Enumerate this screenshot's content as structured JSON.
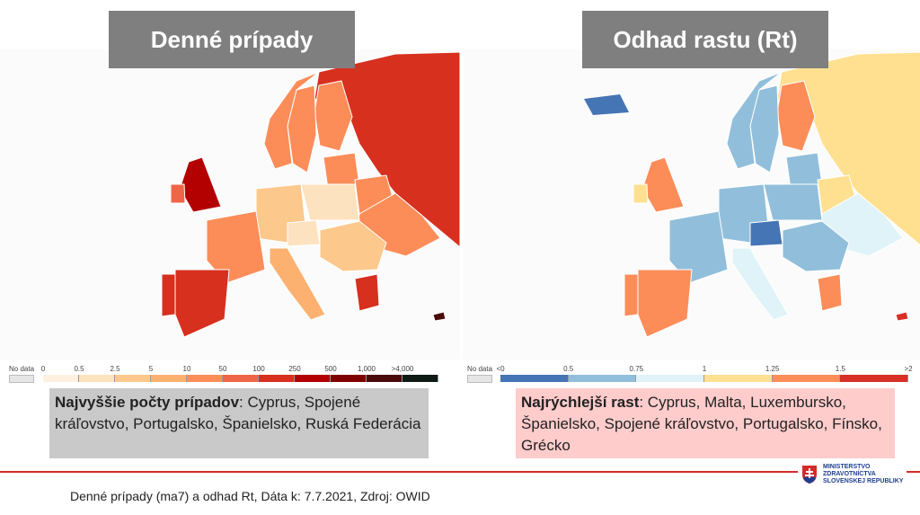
{
  "left": {
    "title": "Denné prípady",
    "legend": {
      "no_data": "No data",
      "ticks": [
        "0",
        "0.5",
        "2.5",
        "5",
        "10",
        "50",
        "100",
        "250",
        "500",
        "1,000",
        ">4,000"
      ],
      "colors": [
        "#fff0e0",
        "#fde2c0",
        "#fdc88c",
        "#fdb170",
        "#fc8d59",
        "#ef6548",
        "#d7301f",
        "#b30000",
        "#7f0000",
        "#4a0a0a",
        "#0f1a14"
      ]
    },
    "summary_label": "Najvyššie počty prípadov",
    "summary_text": ": Cyprus, Spojené kráľovstvo, Portugalsko, Španielsko, Ruská Federácia"
  },
  "right": {
    "title": "Odhad rastu (Rt)",
    "legend": {
      "no_data": "No data",
      "ticks": [
        "<0",
        "0.5",
        "0.75",
        "1",
        "1.25",
        "1.5",
        ">2"
      ],
      "colors": [
        "#4575b4",
        "#91bfdb",
        "#e0f3f8",
        "#fee090",
        "#fc8d59",
        "#d73027"
      ]
    },
    "summary_label": "Najrýchlejší rast",
    "summary_text": ": Cyprus, Malta, Luxembursko, Španielsko, Spojené kráľovstvo, Portugalsko, Fínsko, Grécko"
  },
  "footer": "Denné prípady (ma7) a odhad Rt, Dáta k: 7.7.2021, Zdroj: OWID",
  "logo": {
    "line1": "MINISTERSTVO",
    "line2": "ZDRAVOTNÍCTVA",
    "line3": "SLOVENSKEJ REPUBLIKY"
  }
}
